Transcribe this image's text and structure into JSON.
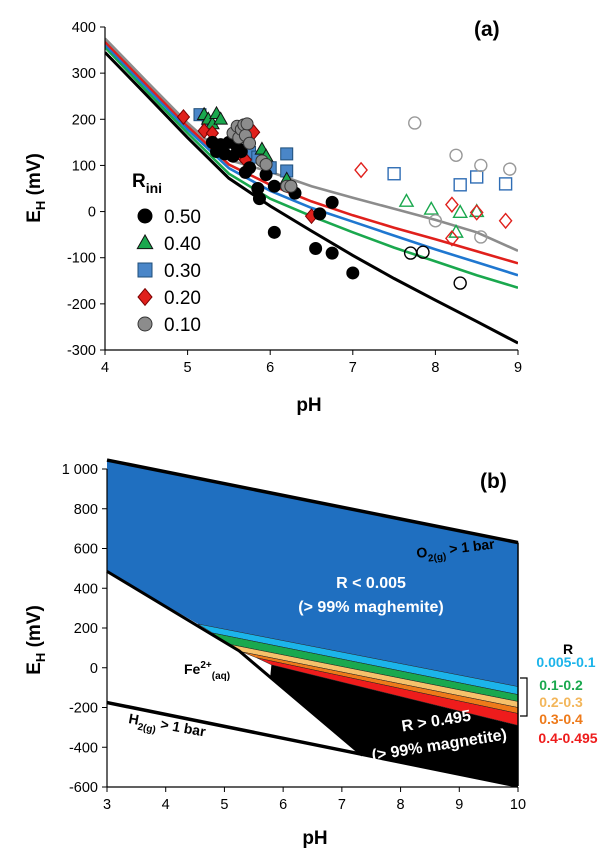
{
  "chart_data": [
    {
      "type": "scatter",
      "panel_label": "(a)",
      "xlabel": "pH",
      "ylabel_main": "E",
      "ylabel_sub": "H",
      "ylabel_unit": " (mV)",
      "xlim": [
        4,
        9
      ],
      "ylim": [
        -300,
        400
      ],
      "xticks": [
        "4",
        "5",
        "6",
        "7",
        "8",
        "9"
      ],
      "yticks": [
        "-300",
        "-200",
        "-100",
        "0",
        "100",
        "200",
        "300",
        "400"
      ],
      "legend_title_main": "R",
      "legend_title_sub": "ini",
      "legend_placement": "left",
      "grid": false,
      "lines": [
        {
          "R": "0.50",
          "color": "#000000",
          "points": [
            [
              4,
              345
            ],
            [
              4.5,
              253
            ],
            [
              5,
              160
            ],
            [
              5.5,
              72
            ],
            [
              6,
              12
            ],
            [
              6.5,
              -42
            ],
            [
              7,
              -95
            ],
            [
              7.5,
              -145
            ],
            [
              8,
              -192
            ],
            [
              8.5,
              -238
            ],
            [
              9,
              -285
            ]
          ]
        },
        {
          "R": "0.40",
          "color": "#1aa84e",
          "points": [
            [
              4,
              356
            ],
            [
              4.5,
              262
            ],
            [
              5,
              170
            ],
            [
              5.5,
              82
            ],
            [
              6,
              28
            ],
            [
              6.5,
              -10
            ],
            [
              7,
              -45
            ],
            [
              7.5,
              -78
            ],
            [
              8,
              -108
            ],
            [
              8.5,
              -138
            ],
            [
              9,
              -165
            ]
          ]
        },
        {
          "R": "0.30",
          "color": "#1f77d0",
          "points": [
            [
              4,
              362
            ],
            [
              4.5,
              270
            ],
            [
              5,
              178
            ],
            [
              5.5,
              94
            ],
            [
              6,
              45
            ],
            [
              6.5,
              8
            ],
            [
              7,
              -22
            ],
            [
              7.5,
              -52
            ],
            [
              8,
              -82
            ],
            [
              8.5,
              -110
            ],
            [
              9,
              -138
            ]
          ]
        },
        {
          "R": "0.20",
          "color": "#e0201c",
          "points": [
            [
              4,
              368
            ],
            [
              4.5,
              276
            ],
            [
              5,
              185
            ],
            [
              5.5,
              102
            ],
            [
              6,
              58
            ],
            [
              6.5,
              22
            ],
            [
              7,
              -8
            ],
            [
              7.5,
              -35
            ],
            [
              8,
              -60
            ],
            [
              8.5,
              -86
            ],
            [
              9,
              -112
            ]
          ]
        },
        {
          "R": "0.10",
          "color": "#8c8c8c",
          "points": [
            [
              4,
              375
            ],
            [
              4.5,
              283
            ],
            [
              5,
              192
            ],
            [
              5.5,
              112
            ],
            [
              6,
              86
            ],
            [
              6.5,
              55
            ],
            [
              7,
              30
            ],
            [
              7.5,
              6
            ],
            [
              8,
              -18
            ],
            [
              8.5,
              -45
            ],
            [
              9,
              -85
            ]
          ]
        }
      ],
      "series": [
        {
          "name": "0.50",
          "marker": "circle",
          "fill": "#000000",
          "stroke": "#000000",
          "points": [
            [
              5.3,
              150
            ],
            [
              5.35,
              130
            ],
            [
              5.4,
              145
            ],
            [
              5.45,
              125
            ],
            [
              5.5,
              150
            ],
            [
              5.55,
              120
            ],
            [
              5.6,
              140
            ],
            [
              5.65,
              130
            ],
            [
              5.7,
              85
            ],
            [
              5.75,
              95
            ],
            [
              5.85,
              50
            ],
            [
              5.87,
              28
            ],
            [
              5.95,
              80
            ],
            [
              6.05,
              -45
            ],
            [
              6.05,
              55
            ],
            [
              6.25,
              55
            ],
            [
              6.3,
              40
            ],
            [
              6.55,
              -80
            ],
            [
              6.6,
              -5
            ],
            [
              6.75,
              -90
            ],
            [
              6.75,
              20
            ],
            [
              7,
              -133
            ]
          ]
        },
        {
          "name": "0.40",
          "marker": "triangle",
          "fill": "#1aa84e",
          "stroke": "#111111",
          "points": [
            [
              5.2,
              210
            ],
            [
              5.25,
              200
            ],
            [
              5.3,
              190
            ],
            [
              5.35,
              212
            ],
            [
              5.4,
              200
            ],
            [
              5.7,
              160
            ],
            [
              5.9,
              135
            ],
            [
              5.95,
              120
            ],
            [
              6.2,
              70
            ]
          ]
        },
        {
          "name": "0.30",
          "marker": "square",
          "fill": "#4a86c8",
          "stroke": "#1f4e79",
          "points": [
            [
              5.15,
              210
            ],
            [
              5.25,
              185
            ],
            [
              5.65,
              132
            ],
            [
              5.75,
              128
            ],
            [
              5.85,
              118
            ],
            [
              6,
              95
            ],
            [
              6.2,
              88
            ],
            [
              6.2,
              125
            ]
          ]
        },
        {
          "name": "0.20",
          "marker": "diamond",
          "fill": "#e0201c",
          "stroke": "#7a0000",
          "points": [
            [
              4.95,
              205
            ],
            [
              5.2,
              175
            ],
            [
              5.3,
              170
            ],
            [
              5.65,
              122
            ],
            [
              5.7,
              112
            ],
            [
              5.8,
              172
            ],
            [
              6.5,
              -10
            ]
          ]
        },
        {
          "name": "0.10",
          "marker": "circle",
          "fill": "#8c8c8c",
          "stroke": "#333333",
          "points": [
            [
              5.55,
              170
            ],
            [
              5.6,
              185
            ],
            [
              5.62,
              160
            ],
            [
              5.65,
              178
            ],
            [
              5.68,
              188
            ],
            [
              5.7,
              165
            ],
            [
              5.72,
              190
            ],
            [
              5.75,
              148
            ],
            [
              5.9,
              110
            ],
            [
              5.95,
              102
            ],
            [
              6.2,
              55
            ],
            [
              6.25,
              55
            ]
          ]
        },
        {
          "name": "0.50-hollow",
          "marker": "circle",
          "fill": "none",
          "stroke": "#000000",
          "points": [
            [
              7.7,
              -90
            ],
            [
              7.85,
              -88
            ],
            [
              8.3,
              -155
            ]
          ]
        },
        {
          "name": "0.40-hollow",
          "marker": "triangle",
          "fill": "none",
          "stroke": "#1aa84e",
          "points": [
            [
              7.65,
              22
            ],
            [
              7.95,
              5
            ],
            [
              8.25,
              -45
            ],
            [
              8.3,
              -2
            ],
            [
              8.5,
              0
            ]
          ]
        },
        {
          "name": "0.30-hollow",
          "marker": "square",
          "fill": "none",
          "stroke": "#2f6db5",
          "points": [
            [
              7.5,
              82
            ],
            [
              8.3,
              58
            ],
            [
              8.5,
              75
            ],
            [
              8.85,
              60
            ]
          ]
        },
        {
          "name": "0.20-hollow",
          "marker": "diamond",
          "fill": "none",
          "stroke": "#e0201c",
          "points": [
            [
              7.1,
              90
            ],
            [
              8.2,
              15
            ],
            [
              8.2,
              -58
            ],
            [
              8.5,
              -2
            ],
            [
              8.85,
              -20
            ]
          ]
        },
        {
          "name": "0.10-hollow",
          "marker": "circle",
          "fill": "none",
          "stroke": "#999999",
          "points": [
            [
              7.75,
              192
            ],
            [
              8,
              -20
            ],
            [
              8.25,
              122
            ],
            [
              8.55,
              100
            ],
            [
              8.55,
              -55
            ],
            [
              8.9,
              92
            ]
          ]
        }
      ]
    },
    {
      "type": "area",
      "panel_label": "(b)",
      "xlabel": "pH",
      "ylabel_main": "E",
      "ylabel_sub": "H",
      "ylabel_unit": " (mV)",
      "xlim": [
        3,
        10
      ],
      "ylim": [
        -600,
        1000
      ],
      "xticks": [
        "3",
        "4",
        "5",
        "6",
        "7",
        "8",
        "9",
        "10"
      ],
      "yticks": [
        "-600",
        "-400",
        "-200",
        "0",
        "200",
        "400",
        "600",
        "800",
        "1 000"
      ],
      "boundaries": {
        "o2": [
          [
            3,
            1045
          ],
          [
            10,
            630
          ]
        ],
        "fe_upper": [
          [
            3,
            485
          ],
          [
            5.25,
            85
          ]
        ],
        "fe_lower": [
          [
            5.25,
            85
          ],
          [
            7.35,
            -440
          ]
        ],
        "h2": [
          [
            3,
            -175
          ],
          [
            10,
            -595
          ]
        ],
        "r_top": [
          [
            4.55,
            220
          ],
          [
            10,
            -95
          ]
        ]
      },
      "bands": [
        {
          "label": "0.005-0.1",
          "color": "#1cb4ea",
          "top_right": -95,
          "top_left": 220,
          "bottom_right": -135,
          "bottom_left": 175
        },
        {
          "label": "0.1-0.2",
          "color": "#1aa84e",
          "top_right": -135,
          "top_left": 175,
          "bottom_right": -170,
          "bottom_left": 120
        },
        {
          "label": "0.2-0.3",
          "color": "#f6c16b",
          "top_right": -170,
          "top_left": 120,
          "bottom_right": -200,
          "bottom_left": 80
        },
        {
          "label": "0.3-0.4",
          "color": "#ee7a1a",
          "top_right": -200,
          "top_left": 80,
          "bottom_right": -230,
          "bottom_left": 50
        },
        {
          "label": "0.4-0.495",
          "color": "#ee1c1c",
          "top_right": -230,
          "top_left": 50,
          "bottom_right": -290,
          "bottom_left": 15
        }
      ],
      "legend_title": "R",
      "annotations": {
        "blue_region_line1": "R < 0.005",
        "blue_region_line2": "(> 99% maghemite)",
        "black_region_line1": "R > 0.495",
        "black_region_line2": "(> 99% magnetite)",
        "o2_main": "O",
        "o2_sub": "2(g)",
        "o2_suffix": " > 1 bar",
        "fe_main": "Fe",
        "fe_sup": "2+",
        "fe_sub": "(aq)",
        "h2_main": "H",
        "h2_sub": "2(g)",
        "h2_suffix": " > 1 bar"
      },
      "colors": {
        "maghemite": "#1f6fc0",
        "magnetite": "#000000"
      }
    }
  ]
}
